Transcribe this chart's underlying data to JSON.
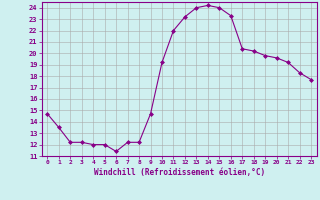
{
  "x": [
    0,
    1,
    2,
    3,
    4,
    5,
    6,
    7,
    8,
    9,
    10,
    11,
    12,
    13,
    14,
    15,
    16,
    17,
    18,
    19,
    20,
    21,
    22,
    23
  ],
  "y": [
    14.7,
    13.5,
    12.2,
    12.2,
    12.0,
    12.0,
    11.4,
    12.2,
    12.2,
    14.7,
    19.2,
    22.0,
    23.2,
    24.0,
    24.2,
    24.0,
    23.3,
    20.4,
    20.2,
    19.8,
    19.6,
    19.2,
    18.3,
    17.7
  ],
  "line_color": "#880088",
  "marker": "D",
  "marker_size": 2,
  "bg_color": "#cff0f0",
  "grid_color": "#aaaaaa",
  "xlabel": "Windchill (Refroidissement éolien,°C)",
  "xlabel_color": "#880088",
  "tick_color": "#880088",
  "ylim": [
    11,
    24.5
  ],
  "yticks": [
    11,
    12,
    13,
    14,
    15,
    16,
    17,
    18,
    19,
    20,
    21,
    22,
    23,
    24
  ],
  "xlim": [
    -0.5,
    23.5
  ],
  "xticks": [
    0,
    1,
    2,
    3,
    4,
    5,
    6,
    7,
    8,
    9,
    10,
    11,
    12,
    13,
    14,
    15,
    16,
    17,
    18,
    19,
    20,
    21,
    22,
    23
  ]
}
